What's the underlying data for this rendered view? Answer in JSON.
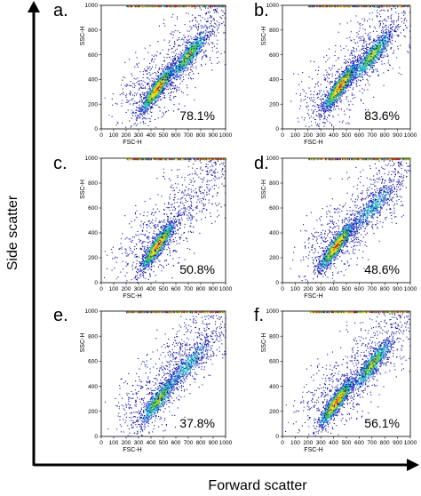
{
  "figure": {
    "y_axis_label": "Side scatter",
    "x_axis_label": "Forward scatter"
  },
  "chart_data": [
    {
      "type": "scatter",
      "panel": "a.",
      "xlabel": "FSC-H",
      "ylabel": "SSC-H",
      "xlim": [
        0,
        1000
      ],
      "ylim": [
        0,
        1000
      ],
      "xticks": [
        "0",
        "100",
        "200",
        "300",
        "400",
        "500",
        "600",
        "700",
        "800",
        "900",
        "1000"
      ],
      "yticks": [
        "0",
        "200",
        "400",
        "600",
        "800",
        "1000"
      ],
      "annotation": "78.1%",
      "density_clusters": [
        {
          "x": 450,
          "y": 330,
          "intensity": "high"
        },
        {
          "x": 700,
          "y": 600,
          "intensity": "medium"
        }
      ]
    },
    {
      "type": "scatter",
      "panel": "b.",
      "xlabel": "FSC-H",
      "ylabel": "SSC-H",
      "xlim": [
        0,
        1000
      ],
      "ylim": [
        0,
        1000
      ],
      "xticks": [
        "0",
        "100",
        "200",
        "300",
        "400",
        "500",
        "600",
        "700",
        "800",
        "900",
        "1000"
      ],
      "yticks": [
        "0",
        "200",
        "400",
        "600",
        "800",
        "1000"
      ],
      "annotation": "83.6%",
      "density_clusters": [
        {
          "x": 450,
          "y": 350,
          "intensity": "high"
        },
        {
          "x": 700,
          "y": 600,
          "intensity": "medium"
        }
      ]
    },
    {
      "type": "scatter",
      "panel": "c.",
      "xlabel": "FSC-H",
      "ylabel": "SSC-H",
      "xlim": [
        0,
        1000
      ],
      "ylim": [
        0,
        1000
      ],
      "xticks": [
        "0",
        "100",
        "200",
        "300",
        "400",
        "500",
        "600",
        "700",
        "800",
        "900",
        "1000"
      ],
      "yticks": [
        "0",
        "200",
        "400",
        "600",
        "800",
        "1000"
      ],
      "annotation": "50.8%",
      "density_clusters": [
        {
          "x": 450,
          "y": 300,
          "intensity": "high"
        }
      ]
    },
    {
      "type": "scatter",
      "panel": "d.",
      "xlabel": "FSC-H",
      "ylabel": "SSC-H",
      "xlim": [
        0,
        1000
      ],
      "ylim": [
        0,
        1000
      ],
      "xticks": [
        "0",
        "100",
        "200",
        "300",
        "400",
        "500",
        "600",
        "700",
        "800",
        "900",
        "1000"
      ],
      "yticks": [
        "0",
        "200",
        "400",
        "600",
        "800",
        "1000"
      ],
      "annotation": "48.6%",
      "density_clusters": [
        {
          "x": 420,
          "y": 300,
          "intensity": "high"
        },
        {
          "x": 700,
          "y": 600,
          "intensity": "low"
        }
      ]
    },
    {
      "type": "scatter",
      "panel": "e.",
      "xlabel": "FSC-H",
      "ylabel": "SSC-H",
      "xlim": [
        0,
        1000
      ],
      "ylim": [
        0,
        1000
      ],
      "xticks": [
        "0",
        "100",
        "200",
        "300",
        "400",
        "500",
        "600",
        "700",
        "800",
        "900",
        "1000"
      ],
      "yticks": [
        "0",
        "200",
        "400",
        "600",
        "800",
        "1000"
      ],
      "annotation": "37.8%",
      "density_clusters": [
        {
          "x": 460,
          "y": 300,
          "intensity": "medium"
        },
        {
          "x": 700,
          "y": 580,
          "intensity": "low"
        }
      ]
    },
    {
      "type": "scatter",
      "panel": "f.",
      "xlabel": "FSC-H",
      "ylabel": "SSC-H",
      "xlim": [
        0,
        1000
      ],
      "ylim": [
        0,
        1000
      ],
      "xticks": [
        "0",
        "100",
        "200",
        "300",
        "400",
        "500",
        "600",
        "700",
        "800",
        "900",
        "1000"
      ],
      "yticks": [
        "0",
        "200",
        "400",
        "600",
        "800",
        "1000"
      ],
      "annotation": "56.1%",
      "density_clusters": [
        {
          "x": 420,
          "y": 280,
          "intensity": "high"
        },
        {
          "x": 700,
          "y": 580,
          "intensity": "medium"
        }
      ]
    }
  ]
}
